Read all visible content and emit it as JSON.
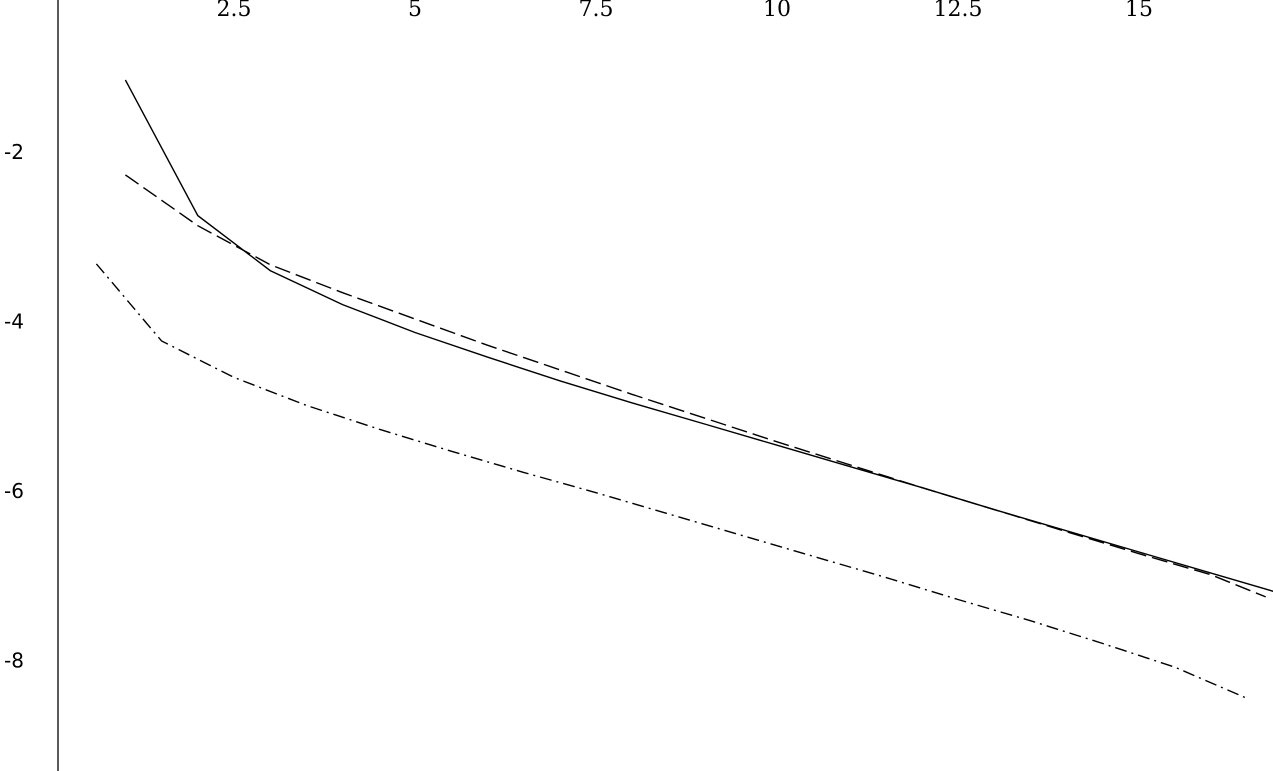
{
  "chart_data": {
    "type": "line",
    "title": "",
    "xlabel": "",
    "ylabel": "",
    "xlim": [
      0,
      17.5
    ],
    "ylim": [
      -9.25,
      0.15
    ],
    "x_ticks": [
      2.5,
      5,
      7.5,
      10,
      12.5,
      15
    ],
    "x_tick_labels": [
      "2.5",
      "5",
      "7.5",
      "10",
      "12.5",
      "15"
    ],
    "y_ticks": [
      -2,
      -4,
      -6,
      -8
    ],
    "y_tick_labels": [
      "-2",
      "-4",
      "-6",
      "-8"
    ],
    "grid": false,
    "x_axis_position": "top",
    "series": [
      {
        "style": "solid",
        "points": [
          [
            1,
            -1.15
          ],
          [
            2,
            -2.75
          ],
          [
            3,
            -3.4
          ],
          [
            4,
            -3.8
          ],
          [
            5,
            -4.13
          ],
          [
            6,
            -4.42
          ],
          [
            7,
            -4.7
          ],
          [
            8,
            -4.96
          ],
          [
            9,
            -5.21
          ],
          [
            10,
            -5.46
          ],
          [
            11,
            -5.71
          ],
          [
            12,
            -5.96
          ],
          [
            13,
            -6.22
          ],
          [
            14,
            -6.47
          ],
          [
            15,
            -6.72
          ],
          [
            16,
            -6.97
          ],
          [
            17,
            -7.22
          ],
          [
            17.5,
            -7.46
          ]
        ]
      },
      {
        "style": "dashed",
        "points": [
          [
            1,
            -2.27
          ],
          [
            2,
            -2.87
          ],
          [
            3,
            -3.33
          ],
          [
            4,
            -3.66
          ],
          [
            5,
            -3.97
          ],
          [
            6,
            -4.28
          ],
          [
            7,
            -4.57
          ],
          [
            8,
            -4.86
          ],
          [
            9,
            -5.14
          ],
          [
            10,
            -5.42
          ],
          [
            11,
            -5.69
          ],
          [
            12,
            -5.96
          ],
          [
            13,
            -6.22
          ],
          [
            14,
            -6.48
          ],
          [
            15,
            -6.74
          ],
          [
            16,
            -6.99
          ],
          [
            16.75,
            -7.25
          ]
        ]
      },
      {
        "style": "dash-dot",
        "points": [
          [
            0.6,
            -3.32
          ],
          [
            1.5,
            -4.23
          ],
          [
            2.5,
            -4.66
          ],
          [
            3.5,
            -4.99
          ],
          [
            4.5,
            -5.27
          ],
          [
            5.5,
            -5.53
          ],
          [
            6.5,
            -5.78
          ],
          [
            7.5,
            -6.02
          ],
          [
            8.5,
            -6.27
          ],
          [
            9.5,
            -6.52
          ],
          [
            10.5,
            -6.77
          ],
          [
            11.5,
            -7.02
          ],
          [
            12.5,
            -7.28
          ],
          [
            13.5,
            -7.53
          ],
          [
            14.5,
            -7.8
          ],
          [
            15.5,
            -8.08
          ],
          [
            16.5,
            -8.45
          ]
        ]
      }
    ]
  }
}
